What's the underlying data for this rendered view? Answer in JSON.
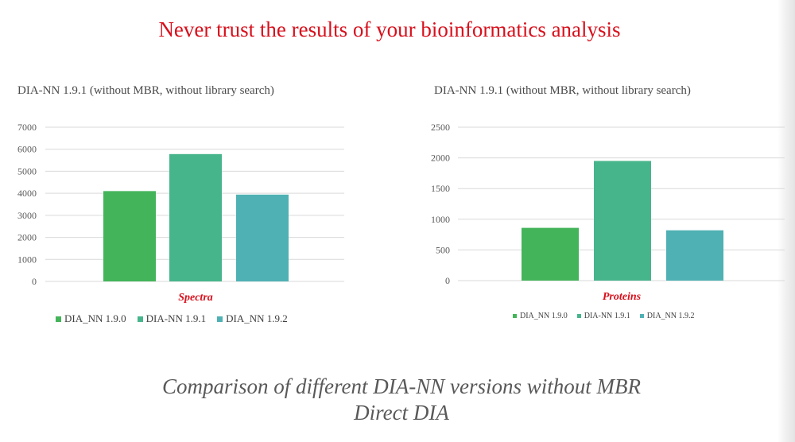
{
  "slide": {
    "title": "Never trust the results of your bioinformatics analysis",
    "caption_line1": "Comparison of different DIA-NN versions without MBR",
    "caption_line2": "Direct DIA"
  },
  "colors": {
    "title_red": "#d8101c",
    "series": [
      "#44b45a",
      "#47b58c",
      "#4fb1b4"
    ],
    "grid": "#d9d9d9",
    "axis_text": "#595959"
  },
  "chart_data": [
    {
      "type": "bar",
      "title": "DIA-NN 1.9.1 (without MBR, without library search)",
      "categories": [
        "Spectra"
      ],
      "series": [
        {
          "name": "DIA_NN 1.9.0",
          "values": [
            4100
          ]
        },
        {
          "name": "DIA-NN 1.9.1",
          "values": [
            5780
          ]
        },
        {
          "name": "DIA_NN 1.9.2",
          "values": [
            3940
          ]
        }
      ],
      "ylim": [
        0,
        7000
      ],
      "yticks": [
        0,
        1000,
        2000,
        3000,
        4000,
        5000,
        6000,
        7000
      ],
      "grid": true,
      "legend": "bottom"
    },
    {
      "type": "bar",
      "title": "DIA-NN 1.9.1 (without MBR, without library search)",
      "categories": [
        "Proteins"
      ],
      "series": [
        {
          "name": "DIA_NN 1.9.0",
          "values": [
            860
          ]
        },
        {
          "name": "DIA-NN 1.9.1",
          "values": [
            1950
          ]
        },
        {
          "name": "DIA_NN 1.9.2",
          "values": [
            820
          ]
        }
      ],
      "ylim": [
        0,
        2500
      ],
      "yticks": [
        0,
        500,
        1000,
        1500,
        2000,
        2500
      ],
      "grid": true,
      "legend": "bottom"
    }
  ]
}
